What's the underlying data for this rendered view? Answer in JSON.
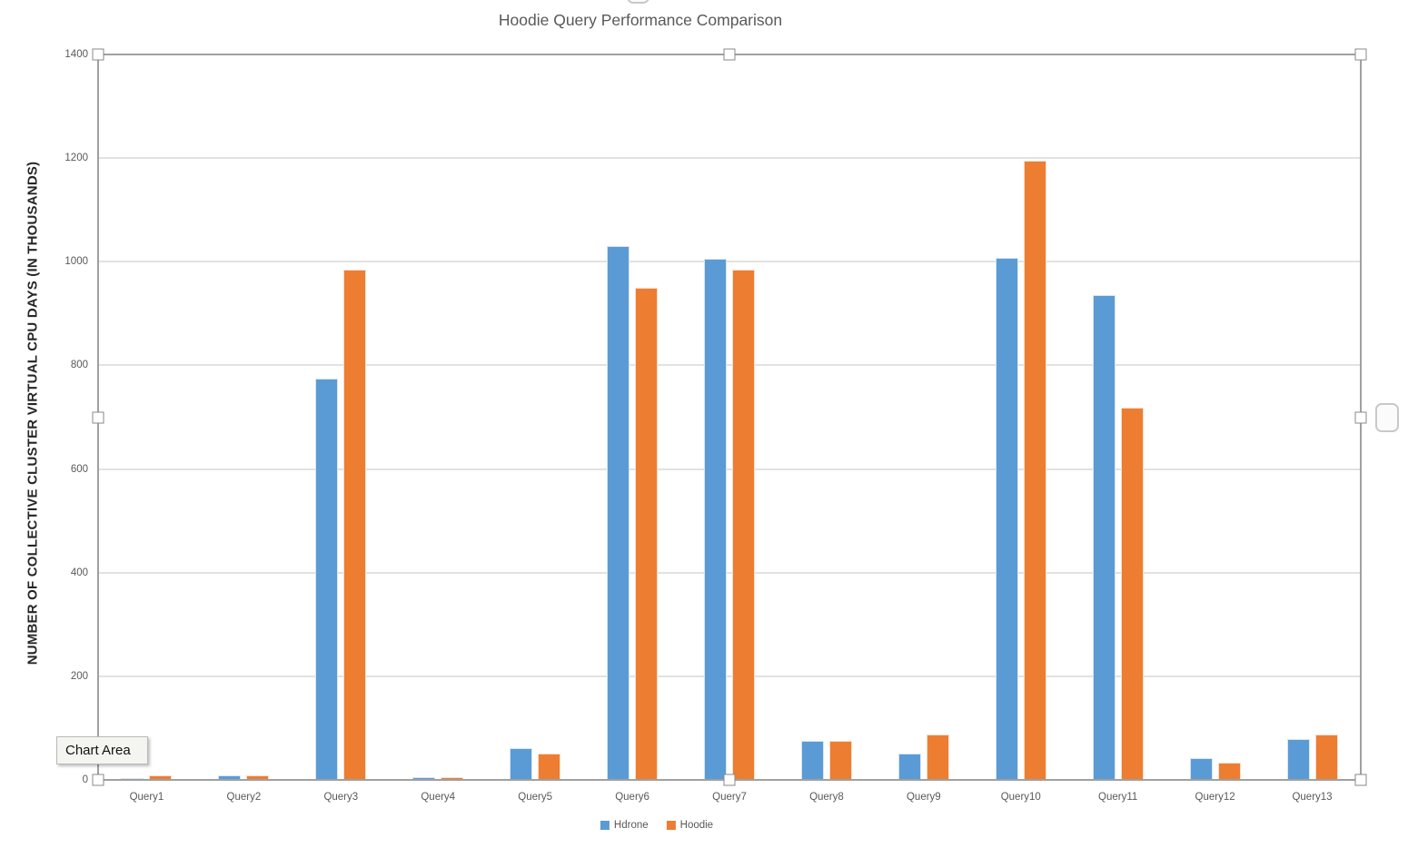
{
  "chart_data": {
    "type": "bar",
    "title": "Hoodie Query Performance Comparison",
    "ylabel": "NUMBER OF COLLECTIVE CLUSTER VIRTUAL CPU DAYS (IN THOUSANDS)",
    "xlabel": "",
    "categories": [
      "Query1",
      "Query2",
      "Query3",
      "Query4",
      "Query5",
      "Query6",
      "Query7",
      "Query8",
      "Query9",
      "Query10",
      "Query11",
      "Query12",
      "Query13"
    ],
    "series": [
      {
        "name": "Hdrone",
        "color": "#5B9BD5",
        "values": [
          4,
          8,
          775,
          5,
          62,
          1030,
          1005,
          75,
          50,
          1008,
          935,
          42,
          79
        ]
      },
      {
        "name": "Hoodie",
        "color": "#ED7D31",
        "values": [
          8,
          8,
          985,
          5,
          50,
          950,
          985,
          75,
          88,
          1195,
          718,
          33,
          88
        ]
      }
    ],
    "ylim": [
      0,
      1400
    ],
    "yticks": [
      0,
      200,
      400,
      600,
      800,
      1000,
      1200,
      1400
    ],
    "grid": true,
    "legend_position": "bottom"
  },
  "tooltip": {
    "label": "Chart Area"
  },
  "colors": {
    "hdrone": "#5B9BD5",
    "hoodie": "#ED7D31",
    "gridline": "#e2e2e2",
    "axis": "#a0a0a0",
    "title_text": "#595959"
  }
}
